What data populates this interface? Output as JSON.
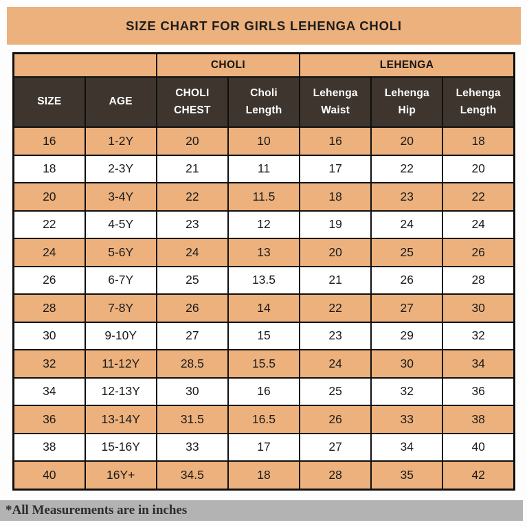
{
  "title": "SIZE CHART FOR GIRLS LEHENGA CHOLI",
  "footer_note": "*All Measurements are in inches",
  "colors": {
    "orange": "#ECB17C",
    "dark_header": "#3E362E",
    "footer_gray": "#B3B3B3",
    "border": "#0F0F0F",
    "header_text": "#FFFFFF",
    "body_text": "#1B1B1B"
  },
  "table": {
    "group_headers": [
      {
        "label": "",
        "colspan": 2
      },
      {
        "label": "CHOLI",
        "colspan": 2
      },
      {
        "label": "LEHENGA",
        "colspan": 3
      }
    ],
    "column_headers": [
      "SIZE",
      "AGE",
      "CHOLI\nCHEST",
      "Choli\nLength",
      "Lehenga\nWaist",
      "Lehenga\nHip",
      "Lehenga\nLength"
    ],
    "rows": [
      [
        "16",
        "1-2Y",
        "20",
        "10",
        "16",
        "20",
        "18"
      ],
      [
        "18",
        "2-3Y",
        "21",
        "11",
        "17",
        "22",
        "20"
      ],
      [
        "20",
        "3-4Y",
        "22",
        "11.5",
        "18",
        "23",
        "22"
      ],
      [
        "22",
        "4-5Y",
        "23",
        "12",
        "19",
        "24",
        "24"
      ],
      [
        "24",
        "5-6Y",
        "24",
        "13",
        "20",
        "25",
        "26"
      ],
      [
        "26",
        "6-7Y",
        "25",
        "13.5",
        "21",
        "26",
        "28"
      ],
      [
        "28",
        "7-8Y",
        "26",
        "14",
        "22",
        "27",
        "30"
      ],
      [
        "30",
        "9-10Y",
        "27",
        "15",
        "23",
        "29",
        "32"
      ],
      [
        "32",
        "11-12Y",
        "28.5",
        "15.5",
        "24",
        "30",
        "34"
      ],
      [
        "34",
        "12-13Y",
        "30",
        "16",
        "25",
        "32",
        "36"
      ],
      [
        "36",
        "13-14Y",
        "31.5",
        "16.5",
        "26",
        "33",
        "38"
      ],
      [
        "38",
        "15-16Y",
        "33",
        "17",
        "27",
        "34",
        "40"
      ],
      [
        "40",
        "16Y+",
        "34.5",
        "18",
        "28",
        "35",
        "42"
      ]
    ]
  },
  "chart_data": {
    "type": "table",
    "title": "SIZE CHART FOR GIRLS LEHENGA CHOLI",
    "column_groups": [
      {
        "label": "",
        "columns": [
          "SIZE",
          "AGE"
        ]
      },
      {
        "label": "CHOLI",
        "columns": [
          "CHOLI CHEST",
          "Choli Length"
        ]
      },
      {
        "label": "LEHENGA",
        "columns": [
          "Lehenga Waist",
          "Lehenga Hip",
          "Lehenga Length"
        ]
      }
    ],
    "columns": [
      "SIZE",
      "AGE",
      "CHOLI CHEST",
      "Choli Length",
      "Lehenga Waist",
      "Lehenga Hip",
      "Lehenga Length"
    ],
    "rows": [
      [
        16,
        "1-2Y",
        20,
        10,
        16,
        20,
        18
      ],
      [
        18,
        "2-3Y",
        21,
        11,
        17,
        22,
        20
      ],
      [
        20,
        "3-4Y",
        22,
        11.5,
        18,
        23,
        22
      ],
      [
        22,
        "4-5Y",
        23,
        12,
        19,
        24,
        24
      ],
      [
        24,
        "5-6Y",
        24,
        13,
        20,
        25,
        26
      ],
      [
        26,
        "6-7Y",
        25,
        13.5,
        21,
        26,
        28
      ],
      [
        28,
        "7-8Y",
        26,
        14,
        22,
        27,
        30
      ],
      [
        30,
        "9-10Y",
        27,
        15,
        23,
        29,
        32
      ],
      [
        32,
        "11-12Y",
        28.5,
        15.5,
        24,
        30,
        34
      ],
      [
        34,
        "12-13Y",
        30,
        16,
        25,
        32,
        36
      ],
      [
        36,
        "13-14Y",
        31.5,
        16.5,
        26,
        33,
        38
      ],
      [
        38,
        "15-16Y",
        33,
        17,
        27,
        34,
        40
      ],
      [
        40,
        "16Y+",
        34.5,
        18,
        28,
        35,
        42
      ]
    ],
    "units": "inches",
    "note": "*All Measurements are in inches"
  }
}
